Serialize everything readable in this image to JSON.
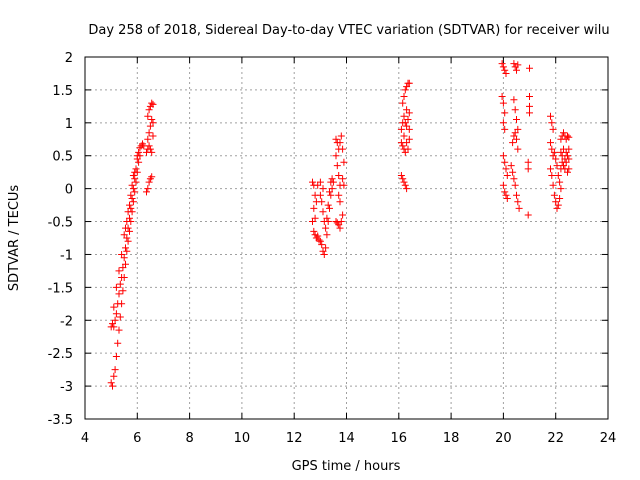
{
  "chart_data": {
    "type": "scatter",
    "title": "Day 258 of 2018, Sidereal Day-to-day VTEC variation (SDTVAR) for receiver wilu",
    "xlabel": "GPS time / hours",
    "ylabel": "SDTVAR / TECUs",
    "xlim": [
      4,
      24
    ],
    "ylim": [
      -3.5,
      2
    ],
    "grid": true,
    "marker": "+",
    "color": "#ff0000",
    "x_ticks": [
      4,
      6,
      8,
      10,
      12,
      14,
      16,
      18,
      20,
      22,
      24
    ],
    "x_tick_labels": [
      "4",
      "6",
      "8",
      "10",
      "12",
      "14",
      "16",
      "18",
      "20",
      "22",
      "24"
    ],
    "y_ticks": [
      -3.5,
      -3,
      -2.5,
      -2,
      -1.5,
      -1,
      -0.5,
      0,
      0.5,
      1,
      1.5,
      2
    ],
    "y_tick_labels": [
      "-3.5",
      "-3",
      "-2.5",
      "-2",
      "-1.5",
      "-1",
      "-0.5",
      "0",
      "0.5",
      "1",
      "1.5",
      "2"
    ],
    "series": [
      {
        "name": "SDTVAR",
        "points": [
          [
            5.0,
            -2.1
          ],
          [
            5.05,
            -2.05
          ],
          [
            5.1,
            -2.1
          ],
          [
            5.15,
            -2.0
          ],
          [
            5.2,
            -1.9
          ],
          [
            5.25,
            -1.75
          ],
          [
            5.3,
            -1.6
          ],
          [
            5.35,
            -1.45
          ],
          [
            5.4,
            -1.35
          ],
          [
            5.45,
            -1.2
          ],
          [
            5.5,
            -1.05
          ],
          [
            5.55,
            -0.9
          ],
          [
            5.6,
            -0.75
          ],
          [
            5.65,
            -0.6
          ],
          [
            5.7,
            -0.45
          ],
          [
            5.75,
            -0.3
          ],
          [
            5.8,
            -0.15
          ],
          [
            5.85,
            0.0
          ],
          [
            5.9,
            0.15
          ],
          [
            5.95,
            0.3
          ],
          [
            6.0,
            0.45
          ],
          [
            6.05,
            0.55
          ],
          [
            6.1,
            0.62
          ],
          [
            6.15,
            0.65
          ],
          [
            6.2,
            0.68
          ],
          [
            6.25,
            0.65
          ],
          [
            5.0,
            -2.95
          ],
          [
            5.05,
            -3.0
          ],
          [
            5.1,
            -2.85
          ],
          [
            5.15,
            -2.75
          ],
          [
            5.2,
            -2.55
          ],
          [
            5.25,
            -2.35
          ],
          [
            5.3,
            -2.15
          ],
          [
            5.35,
            -1.95
          ],
          [
            5.4,
            -1.75
          ],
          [
            5.45,
            -1.55
          ],
          [
            5.5,
            -1.35
          ],
          [
            5.55,
            -1.15
          ],
          [
            5.6,
            -0.95
          ],
          [
            5.65,
            -0.8
          ],
          [
            5.7,
            -0.65
          ],
          [
            5.75,
            -0.5
          ],
          [
            5.8,
            -0.35
          ],
          [
            5.85,
            -0.2
          ],
          [
            5.9,
            -0.05
          ],
          [
            5.95,
            0.1
          ],
          [
            6.0,
            0.25
          ],
          [
            6.05,
            0.4
          ],
          [
            6.1,
            0.5
          ],
          [
            5.1,
            -1.8
          ],
          [
            5.2,
            -1.5
          ],
          [
            5.3,
            -1.25
          ],
          [
            5.4,
            -1.0
          ],
          [
            5.5,
            -0.7
          ],
          [
            5.6,
            -0.5
          ],
          [
            5.7,
            -0.25
          ],
          [
            5.8,
            0.05
          ],
          [
            5.9,
            0.25
          ],
          [
            6.0,
            0.5
          ],
          [
            5.55,
            -0.6
          ],
          [
            5.65,
            -0.35
          ],
          [
            5.75,
            -0.1
          ],
          [
            5.85,
            0.2
          ],
          [
            6.35,
            -0.05
          ],
          [
            6.4,
            0.0
          ],
          [
            6.45,
            0.1
          ],
          [
            6.5,
            0.15
          ],
          [
            6.55,
            0.18
          ],
          [
            6.35,
            0.55
          ],
          [
            6.4,
            0.6
          ],
          [
            6.45,
            0.65
          ],
          [
            6.5,
            0.6
          ],
          [
            6.55,
            0.55
          ],
          [
            6.4,
            0.75
          ],
          [
            6.45,
            0.85
          ],
          [
            6.5,
            0.95
          ],
          [
            6.55,
            1.05
          ],
          [
            6.4,
            1.1
          ],
          [
            6.45,
            1.2
          ],
          [
            6.5,
            1.25
          ],
          [
            6.55,
            1.3
          ],
          [
            6.6,
            1.28
          ],
          [
            6.6,
            1.0
          ],
          [
            6.6,
            0.8
          ],
          [
            12.7,
            0.1
          ],
          [
            12.75,
            0.05
          ],
          [
            12.8,
            -0.1
          ],
          [
            12.75,
            -0.3
          ],
          [
            12.7,
            -0.5
          ],
          [
            12.75,
            -0.65
          ],
          [
            12.8,
            -0.7
          ],
          [
            12.85,
            -0.75
          ],
          [
            12.9,
            -0.72
          ],
          [
            12.95,
            -0.78
          ],
          [
            13.0,
            -0.8
          ],
          [
            13.05,
            -0.85
          ],
          [
            13.1,
            -0.95
          ],
          [
            13.15,
            -1.0
          ],
          [
            13.2,
            -0.9
          ],
          [
            13.25,
            -0.7
          ],
          [
            13.3,
            -0.5
          ],
          [
            13.35,
            -0.3
          ],
          [
            13.4,
            -0.1
          ],
          [
            13.45,
            0.0
          ],
          [
            13.5,
            0.1
          ],
          [
            13.0,
            -0.1
          ],
          [
            13.05,
            -0.2
          ],
          [
            13.1,
            -0.35
          ],
          [
            13.15,
            -0.5
          ],
          [
            13.2,
            -0.6
          ],
          [
            13.25,
            -0.45
          ],
          [
            13.3,
            -0.25
          ],
          [
            13.35,
            -0.05
          ],
          [
            13.4,
            0.1
          ],
          [
            13.45,
            0.15
          ],
          [
            12.8,
            -0.45
          ],
          [
            12.85,
            -0.2
          ],
          [
            12.9,
            0.05
          ],
          [
            13.0,
            0.1
          ],
          [
            13.1,
            0.0
          ],
          [
            13.6,
            0.75
          ],
          [
            13.65,
            0.7
          ],
          [
            13.7,
            0.6
          ],
          [
            13.6,
            0.5
          ],
          [
            13.65,
            0.35
          ],
          [
            13.7,
            0.2
          ],
          [
            13.75,
            0.05
          ],
          [
            13.7,
            -0.1
          ],
          [
            13.75,
            -0.2
          ],
          [
            13.6,
            -0.5
          ],
          [
            13.65,
            -0.52
          ],
          [
            13.7,
            -0.55
          ],
          [
            13.75,
            -0.6
          ],
          [
            13.8,
            -0.5
          ],
          [
            13.85,
            -0.4
          ],
          [
            13.8,
            0.8
          ],
          [
            13.75,
            0.7
          ],
          [
            13.85,
            0.6
          ],
          [
            13.9,
            0.4
          ],
          [
            13.85,
            0.15
          ],
          [
            13.9,
            0.05
          ],
          [
            16.1,
            0.2
          ],
          [
            16.15,
            0.15
          ],
          [
            16.2,
            0.1
          ],
          [
            16.25,
            0.05
          ],
          [
            16.3,
            0.0
          ],
          [
            16.1,
            0.7
          ],
          [
            16.15,
            0.65
          ],
          [
            16.2,
            0.6
          ],
          [
            16.25,
            0.55
          ],
          [
            16.3,
            0.7
          ],
          [
            16.35,
            0.6
          ],
          [
            16.1,
            0.9
          ],
          [
            16.15,
            1.0
          ],
          [
            16.2,
            1.1
          ],
          [
            16.25,
            1.0
          ],
          [
            16.3,
            0.95
          ],
          [
            16.35,
            1.05
          ],
          [
            16.4,
            0.9
          ],
          [
            16.15,
            1.3
          ],
          [
            16.2,
            1.4
          ],
          [
            16.25,
            1.5
          ],
          [
            16.3,
            1.55
          ],
          [
            16.35,
            1.6
          ],
          [
            16.4,
            1.6
          ],
          [
            16.3,
            1.2
          ],
          [
            16.4,
            1.15
          ],
          [
            16.2,
            0.8
          ],
          [
            16.4,
            0.75
          ],
          [
            19.95,
            1.9
          ],
          [
            20.0,
            1.85
          ],
          [
            20.05,
            1.8
          ],
          [
            20.1,
            1.75
          ],
          [
            20.4,
            1.9
          ],
          [
            20.45,
            1.85
          ],
          [
            20.5,
            1.8
          ],
          [
            20.55,
            1.88
          ],
          [
            21.0,
            1.83
          ],
          [
            19.95,
            1.4
          ],
          [
            20.0,
            1.3
          ],
          [
            20.05,
            1.15
          ],
          [
            20.0,
            1.0
          ],
          [
            20.05,
            0.9
          ],
          [
            20.4,
            1.35
          ],
          [
            20.45,
            1.2
          ],
          [
            20.5,
            1.05
          ],
          [
            20.55,
            0.9
          ],
          [
            21.0,
            1.4
          ],
          [
            21.0,
            1.25
          ],
          [
            21.0,
            1.15
          ],
          [
            20.0,
            0.5
          ],
          [
            20.05,
            0.4
          ],
          [
            20.1,
            0.3
          ],
          [
            20.15,
            0.2
          ],
          [
            20.0,
            0.05
          ],
          [
            20.05,
            -0.05
          ],
          [
            20.1,
            -0.1
          ],
          [
            20.15,
            -0.15
          ],
          [
            20.3,
            0.35
          ],
          [
            20.35,
            0.25
          ],
          [
            20.4,
            0.15
          ],
          [
            20.45,
            0.05
          ],
          [
            20.5,
            -0.1
          ],
          [
            20.55,
            -0.2
          ],
          [
            20.6,
            -0.3
          ],
          [
            20.35,
            0.7
          ],
          [
            20.4,
            0.8
          ],
          [
            20.45,
            0.85
          ],
          [
            20.5,
            0.75
          ],
          [
            20.55,
            0.6
          ],
          [
            20.95,
            0.4
          ],
          [
            20.95,
            0.3
          ],
          [
            20.95,
            -0.4
          ],
          [
            21.8,
            1.1
          ],
          [
            21.85,
            1.0
          ],
          [
            21.9,
            0.9
          ],
          [
            21.8,
            0.7
          ],
          [
            21.85,
            0.6
          ],
          [
            21.9,
            0.5
          ],
          [
            21.95,
            0.55
          ],
          [
            22.0,
            0.45
          ],
          [
            22.05,
            0.35
          ],
          [
            22.1,
            0.2
          ],
          [
            22.15,
            0.1
          ],
          [
            22.2,
            0.0
          ],
          [
            21.8,
            0.3
          ],
          [
            21.85,
            0.2
          ],
          [
            21.9,
            0.05
          ],
          [
            21.95,
            -0.1
          ],
          [
            22.0,
            -0.2
          ],
          [
            22.05,
            -0.3
          ],
          [
            22.1,
            -0.25
          ],
          [
            22.15,
            -0.15
          ],
          [
            22.2,
            0.75
          ],
          [
            22.25,
            0.8
          ],
          [
            22.3,
            0.85
          ],
          [
            22.35,
            0.8
          ],
          [
            22.4,
            0.75
          ],
          [
            22.45,
            0.8
          ],
          [
            22.5,
            0.78
          ],
          [
            22.2,
            0.55
          ],
          [
            22.25,
            0.5
          ],
          [
            22.3,
            0.6
          ],
          [
            22.35,
            0.45
          ],
          [
            22.4,
            0.55
          ],
          [
            22.45,
            0.5
          ],
          [
            22.5,
            0.6
          ],
          [
            22.2,
            0.3
          ],
          [
            22.25,
            0.4
          ],
          [
            22.3,
            0.35
          ],
          [
            22.35,
            0.3
          ],
          [
            22.4,
            0.4
          ],
          [
            22.45,
            0.25
          ],
          [
            22.5,
            0.3
          ],
          [
            22.5,
            0.45
          ]
        ]
      }
    ]
  }
}
